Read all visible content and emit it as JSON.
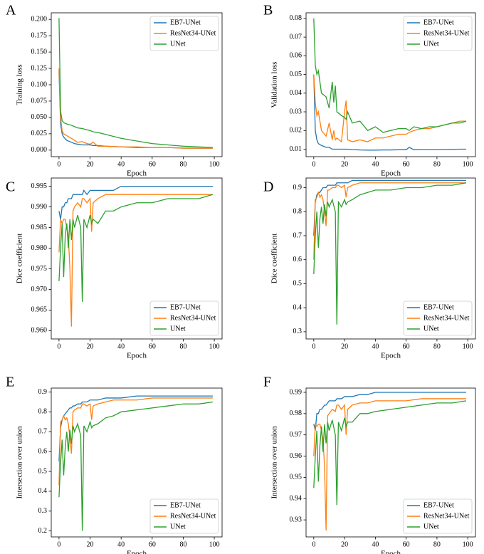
{
  "chart_data": [
    {
      "type": "line",
      "panel_label": "A",
      "xlabel": "Epoch",
      "ylabel": "Training loss",
      "legend": "upper right",
      "x": [
        0,
        1,
        2,
        3,
        5,
        8,
        10,
        12,
        15,
        18,
        20,
        22,
        25,
        30,
        40,
        50,
        60,
        70,
        80,
        90,
        99
      ],
      "xlim": [
        -5,
        105
      ],
      "xticks": [
        0,
        20,
        40,
        60,
        80,
        100
      ],
      "ylim": [
        -0.01,
        0.21
      ],
      "yticks": [
        {
          "value": 0,
          "label": "0.000"
        },
        0.025,
        {
          "value": 0.05,
          "label": "0.050"
        },
        0.075,
        {
          "value": 0.1,
          "label": "0.100"
        },
        0.125,
        {
          "value": 0.15,
          "label": "0.150"
        },
        0.175,
        {
          "value": 0.2,
          "label": "0.200"
        }
      ],
      "series": [
        {
          "name": "EB7-UNet",
          "color": "#1f77b4",
          "values": [
            0.12,
            0.04,
            0.025,
            0.02,
            0.015,
            0.012,
            0.01,
            0.009,
            0.008,
            0.008,
            0.008,
            0.007,
            0.007,
            0.006,
            0.005,
            0.004,
            0.004,
            0.004,
            0.003,
            0.003,
            0.003
          ]
        },
        {
          "name": "ResNet34-UNet",
          "color": "#ff7f0e",
          "values": [
            0.125,
            0.05,
            0.03,
            0.025,
            0.022,
            0.018,
            0.015,
            0.012,
            0.013,
            0.01,
            0.009,
            0.012,
            0.006,
            0.006,
            0.005,
            0.005,
            0.004,
            0.004,
            0.003,
            0.003,
            0.003
          ]
        },
        {
          "name": "UNet",
          "color": "#2ca02c",
          "values": [
            0.202,
            0.06,
            0.045,
            0.042,
            0.04,
            0.038,
            0.036,
            0.034,
            0.033,
            0.031,
            0.03,
            0.028,
            0.027,
            0.024,
            0.018,
            0.014,
            0.01,
            0.008,
            0.006,
            0.005,
            0.004
          ]
        }
      ]
    },
    {
      "type": "line",
      "panel_label": "B",
      "xlabel": "Epoch",
      "ylabel": "Validation loss",
      "legend": "upper right",
      "x": [
        0,
        1,
        2,
        3,
        5,
        8,
        10,
        12,
        13,
        14,
        15,
        18,
        20,
        21,
        22,
        25,
        30,
        35,
        40,
        45,
        50,
        55,
        60,
        62,
        65,
        70,
        75,
        80,
        85,
        90,
        95,
        99
      ],
      "xlim": [
        -5,
        105
      ],
      "xticks": [
        0,
        20,
        40,
        60,
        80,
        100
      ],
      "ylim": [
        0.006,
        0.083
      ],
      "yticks": [
        0.01,
        0.02,
        0.03,
        0.04,
        0.05,
        0.06,
        0.07,
        0.08
      ],
      "series": [
        {
          "name": "EB7-UNet",
          "color": "#1f77b4",
          "values": [
            0.05,
            0.02,
            0.015,
            0.013,
            0.012,
            0.011,
            0.011,
            0.01,
            0.01,
            0.01,
            0.01,
            0.01,
            0.01,
            0.01,
            0.01,
            0.0098,
            0.0096,
            0.0095,
            0.0095,
            0.0096,
            0.0096,
            0.0097,
            0.0097,
            0.011,
            0.0097,
            0.0098,
            0.0098,
            0.0098,
            0.0099,
            0.0099,
            0.01,
            0.01
          ]
        },
        {
          "name": "ResNet34-UNet",
          "color": "#ff7f0e",
          "values": [
            0.05,
            0.035,
            0.028,
            0.03,
            0.02,
            0.017,
            0.024,
            0.015,
            0.02,
            0.015,
            0.016,
            0.014,
            0.03,
            0.036,
            0.015,
            0.014,
            0.015,
            0.014,
            0.016,
            0.016,
            0.017,
            0.018,
            0.018,
            0.019,
            0.02,
            0.021,
            0.021,
            0.022,
            0.023,
            0.024,
            0.025,
            0.025
          ]
        },
        {
          "name": "UNet",
          "color": "#2ca02c",
          "values": [
            0.08,
            0.055,
            0.05,
            0.052,
            0.04,
            0.038,
            0.032,
            0.046,
            0.035,
            0.044,
            0.03,
            0.028,
            0.027,
            0.026,
            0.03,
            0.024,
            0.025,
            0.02,
            0.022,
            0.019,
            0.02,
            0.021,
            0.021,
            0.02,
            0.022,
            0.021,
            0.022,
            0.022,
            0.023,
            0.024,
            0.024,
            0.025
          ]
        }
      ]
    },
    {
      "type": "line",
      "panel_label": "C",
      "xlabel": "Epoch",
      "ylabel": "Dice coefficient",
      "legend": "lower right",
      "x": [
        0,
        1,
        2,
        3,
        4,
        5,
        6,
        7,
        8,
        9,
        10,
        12,
        14,
        15,
        16,
        18,
        20,
        21,
        22,
        25,
        30,
        35,
        40,
        50,
        60,
        70,
        80,
        90,
        99
      ],
      "xlim": [
        -5,
        105
      ],
      "xticks": [
        0,
        20,
        40,
        60,
        80,
        100
      ],
      "ylim": [
        0.958,
        0.997
      ],
      "yticks": [
        {
          "value": 0.96,
          "label": "0.960"
        },
        0.965,
        {
          "value": 0.97,
          "label": "0.970"
        },
        0.975,
        {
          "value": 0.98,
          "label": "0.980"
        },
        0.985,
        {
          "value": 0.99,
          "label": "0.990"
        },
        0.995
      ],
      "series": [
        {
          "name": "EB7-UNet",
          "color": "#1f77b4",
          "values": [
            0.989,
            0.987,
            0.99,
            0.99,
            0.991,
            0.991,
            0.992,
            0.992,
            0.992,
            0.993,
            0.993,
            0.993,
            0.993,
            0.993,
            0.994,
            0.993,
            0.994,
            0.994,
            0.994,
            0.994,
            0.994,
            0.994,
            0.995,
            0.995,
            0.995,
            0.995,
            0.995,
            0.995,
            0.995
          ]
        },
        {
          "name": "ResNet34-UNet",
          "color": "#ff7f0e",
          "values": [
            0.979,
            0.987,
            0.986,
            0.987,
            0.987,
            0.985,
            0.983,
            0.975,
            0.961,
            0.989,
            0.99,
            0.991,
            0.99,
            0.992,
            0.992,
            0.991,
            0.992,
            0.984,
            0.991,
            0.992,
            0.993,
            0.993,
            0.993,
            0.993,
            0.993,
            0.993,
            0.993,
            0.993,
            0.993
          ]
        },
        {
          "name": "UNet",
          "color": "#2ca02c",
          "values": [
            0.972,
            0.98,
            0.986,
            0.973,
            0.983,
            0.986,
            0.98,
            0.987,
            0.982,
            0.987,
            0.985,
            0.988,
            0.985,
            0.967,
            0.987,
            0.985,
            0.988,
            0.986,
            0.987,
            0.986,
            0.989,
            0.989,
            0.99,
            0.991,
            0.991,
            0.992,
            0.992,
            0.992,
            0.993
          ]
        }
      ]
    },
    {
      "type": "line",
      "panel_label": "D",
      "xlabel": "Epoch",
      "ylabel": "Dice coefficient",
      "legend": "lower right",
      "x": [
        0,
        1,
        2,
        3,
        4,
        5,
        6,
        7,
        8,
        9,
        10,
        12,
        14,
        15,
        16,
        18,
        20,
        21,
        22,
        25,
        30,
        35,
        40,
        50,
        60,
        70,
        80,
        90,
        99
      ],
      "xlim": [
        -5,
        105
      ],
      "xticks": [
        0,
        20,
        40,
        60,
        80,
        100
      ],
      "ylim": [
        0.27,
        0.94
      ],
      "yticks": [
        0.3,
        0.4,
        0.5,
        0.6,
        0.7,
        0.8,
        0.9
      ],
      "series": [
        {
          "name": "EB7-UNet",
          "color": "#1f77b4",
          "values": [
            0.7,
            0.84,
            0.87,
            0.88,
            0.88,
            0.89,
            0.9,
            0.9,
            0.9,
            0.91,
            0.91,
            0.91,
            0.91,
            0.92,
            0.92,
            0.92,
            0.92,
            0.92,
            0.92,
            0.93,
            0.93,
            0.93,
            0.93,
            0.93,
            0.93,
            0.93,
            0.93,
            0.93,
            0.93
          ]
        },
        {
          "name": "ResNet34-UNet",
          "color": "#ff7f0e",
          "values": [
            0.6,
            0.85,
            0.86,
            0.88,
            0.86,
            0.87,
            0.85,
            0.8,
            0.74,
            0.89,
            0.89,
            0.9,
            0.9,
            0.91,
            0.91,
            0.9,
            0.91,
            0.86,
            0.9,
            0.91,
            0.92,
            0.92,
            0.92,
            0.92,
            0.92,
            0.92,
            0.92,
            0.92,
            0.92
          ]
        },
        {
          "name": "UNet",
          "color": "#2ca02c",
          "values": [
            0.54,
            0.7,
            0.8,
            0.65,
            0.77,
            0.82,
            0.75,
            0.83,
            0.78,
            0.84,
            0.82,
            0.85,
            0.8,
            0.33,
            0.84,
            0.82,
            0.85,
            0.83,
            0.84,
            0.85,
            0.87,
            0.88,
            0.89,
            0.89,
            0.9,
            0.9,
            0.91,
            0.91,
            0.92
          ]
        }
      ]
    },
    {
      "type": "line",
      "panel_label": "E",
      "xlabel": "Epoch",
      "ylabel": "Intersection over union",
      "legend": "lower right",
      "x": [
        0,
        1,
        2,
        3,
        4,
        5,
        6,
        7,
        8,
        9,
        10,
        12,
        14,
        15,
        16,
        18,
        20,
        21,
        22,
        25,
        30,
        35,
        40,
        50,
        60,
        70,
        80,
        90,
        99
      ],
      "xlim": [
        -5,
        105
      ],
      "xticks": [
        0,
        20,
        40,
        60,
        80,
        100
      ],
      "ylim": [
        0.17,
        0.92
      ],
      "yticks": [
        0.2,
        0.3,
        0.4,
        0.5,
        0.6,
        0.7,
        0.8,
        0.9
      ],
      "series": [
        {
          "name": "EB7-UNet",
          "color": "#1f77b4",
          "values": [
            0.55,
            0.72,
            0.76,
            0.78,
            0.79,
            0.8,
            0.81,
            0.82,
            0.82,
            0.83,
            0.83,
            0.84,
            0.84,
            0.85,
            0.85,
            0.85,
            0.86,
            0.86,
            0.86,
            0.86,
            0.87,
            0.87,
            0.87,
            0.88,
            0.88,
            0.88,
            0.88,
            0.88,
            0.88
          ]
        },
        {
          "name": "ResNet34-UNet",
          "color": "#ff7f0e",
          "values": [
            0.43,
            0.75,
            0.76,
            0.78,
            0.76,
            0.77,
            0.74,
            0.67,
            0.59,
            0.8,
            0.81,
            0.82,
            0.82,
            0.84,
            0.84,
            0.83,
            0.84,
            0.76,
            0.83,
            0.84,
            0.85,
            0.86,
            0.86,
            0.86,
            0.87,
            0.87,
            0.87,
            0.87,
            0.87
          ]
        },
        {
          "name": "UNet",
          "color": "#2ca02c",
          "values": [
            0.37,
            0.54,
            0.66,
            0.48,
            0.62,
            0.7,
            0.6,
            0.71,
            0.64,
            0.73,
            0.7,
            0.74,
            0.68,
            0.2,
            0.73,
            0.7,
            0.75,
            0.72,
            0.73,
            0.74,
            0.77,
            0.78,
            0.8,
            0.81,
            0.82,
            0.83,
            0.84,
            0.84,
            0.85
          ]
        }
      ]
    },
    {
      "type": "line",
      "panel_label": "F",
      "xlabel": "Epoch",
      "ylabel": "Intersection over union",
      "legend": "lower right",
      "x": [
        0,
        1,
        2,
        3,
        4,
        5,
        6,
        7,
        8,
        9,
        10,
        12,
        14,
        15,
        16,
        18,
        20,
        21,
        22,
        25,
        30,
        35,
        40,
        50,
        60,
        70,
        80,
        90,
        99
      ],
      "xlim": [
        -5,
        105
      ],
      "xticks": [
        0,
        20,
        40,
        60,
        80,
        100
      ],
      "ylim": [
        0.922,
        0.992
      ],
      "yticks": [
        0.93,
        0.94,
        0.95,
        0.96,
        0.97,
        0.98,
        0.99
      ],
      "series": [
        {
          "name": "EB7-UNet",
          "color": "#1f77b4",
          "values": [
            0.975,
            0.972,
            0.98,
            0.98,
            0.982,
            0.982,
            0.983,
            0.984,
            0.984,
            0.985,
            0.986,
            0.986,
            0.986,
            0.987,
            0.987,
            0.987,
            0.988,
            0.988,
            0.988,
            0.988,
            0.989,
            0.989,
            0.99,
            0.99,
            0.99,
            0.99,
            0.99,
            0.99,
            0.99
          ]
        },
        {
          "name": "ResNet34-UNet",
          "color": "#ff7f0e",
          "values": [
            0.96,
            0.975,
            0.974,
            0.975,
            0.975,
            0.972,
            0.968,
            0.955,
            0.925,
            0.979,
            0.98,
            0.982,
            0.981,
            0.984,
            0.984,
            0.982,
            0.984,
            0.97,
            0.982,
            0.984,
            0.985,
            0.985,
            0.986,
            0.986,
            0.986,
            0.987,
            0.987,
            0.987,
            0.987
          ]
        },
        {
          "name": "UNet",
          "color": "#2ca02c",
          "values": [
            0.945,
            0.96,
            0.972,
            0.948,
            0.965,
            0.974,
            0.962,
            0.975,
            0.966,
            0.976,
            0.972,
            0.977,
            0.97,
            0.937,
            0.976,
            0.972,
            0.978,
            0.974,
            0.976,
            0.976,
            0.98,
            0.98,
            0.981,
            0.982,
            0.983,
            0.984,
            0.985,
            0.985,
            0.986
          ]
        }
      ]
    }
  ]
}
